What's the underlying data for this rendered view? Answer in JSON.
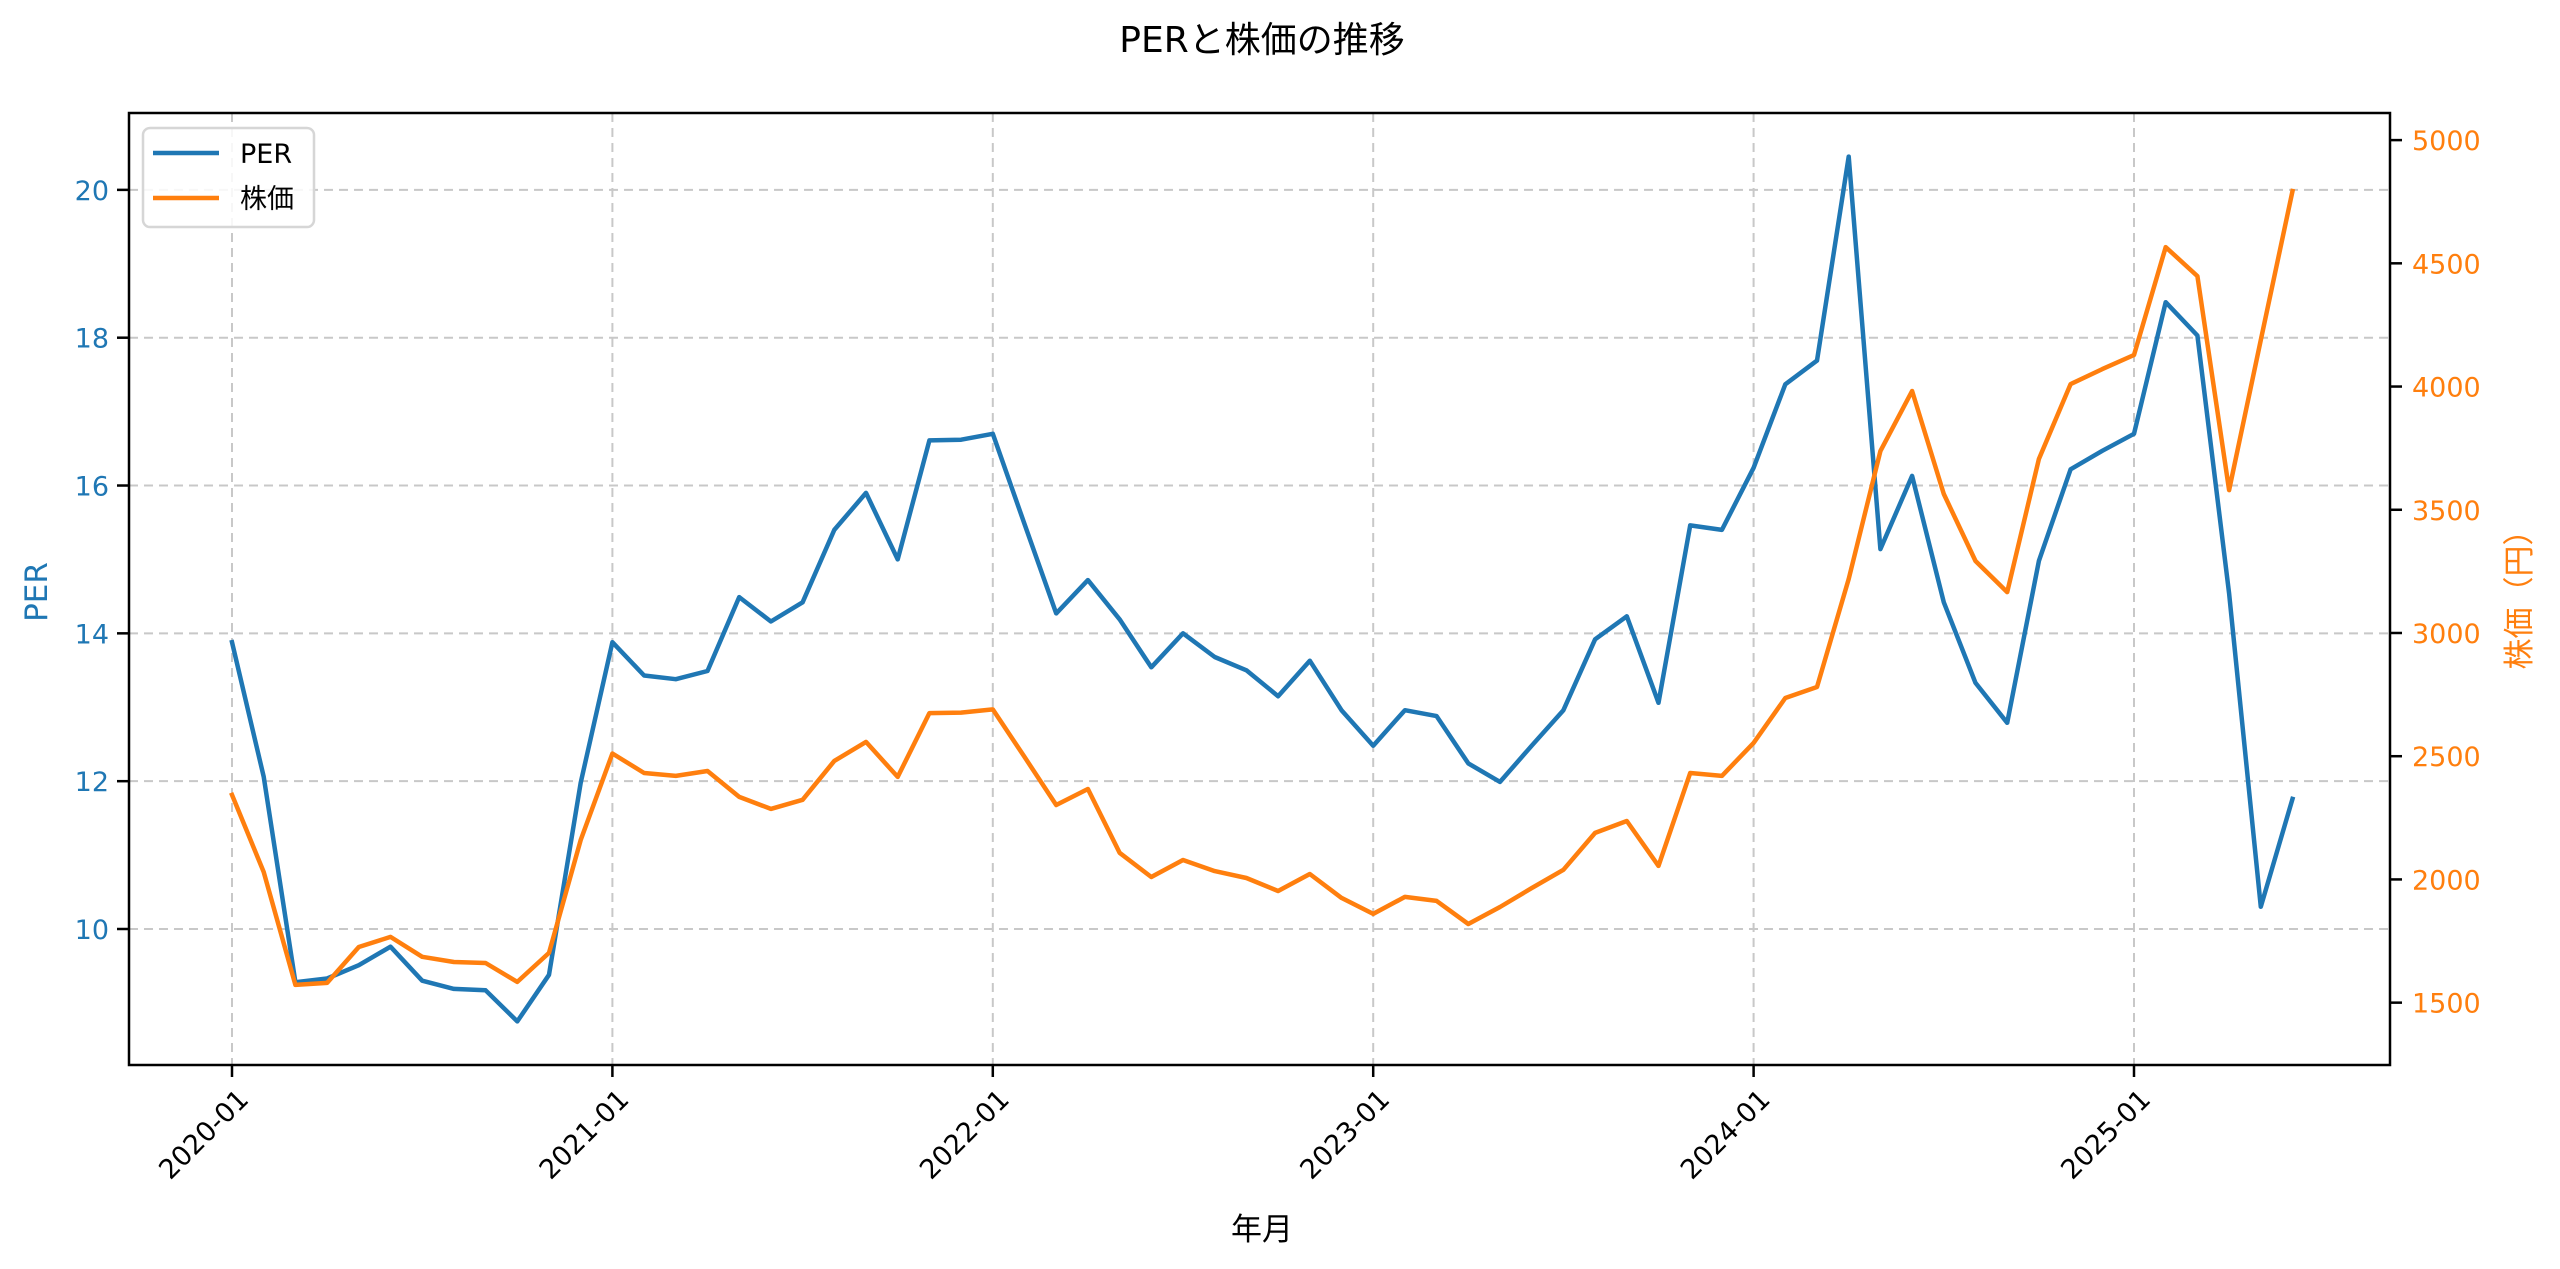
{
  "chart_data": {
    "type": "line",
    "title": "PERと株価の推移",
    "xlabel": "年月",
    "ylabel_left": "PER",
    "ylabel_right": "株価（円）",
    "x_tick_labels": [
      "2020-01",
      "2021-01",
      "2022-01",
      "2023-01",
      "2024-01",
      "2025-01"
    ],
    "y_left_ticks": [
      10,
      12,
      14,
      16,
      18,
      20
    ],
    "y_right_ticks": [
      1500,
      2000,
      2500,
      3000,
      3500,
      4000,
      4500,
      5000
    ],
    "ylim_left": [
      8.16,
      21.04
    ],
    "ylim_right": [
      1247,
      5110
    ],
    "grid": true,
    "legend_position": "upper left",
    "colors": {
      "PER": "#1f77b4",
      "株価": "#ff7f0e"
    },
    "x": [
      "2020-01",
      "2020-02",
      "2020-03",
      "2020-04",
      "2020-05",
      "2020-06",
      "2020-07",
      "2020-08",
      "2020-09",
      "2020-10",
      "2020-11",
      "2020-12",
      "2021-01",
      "2021-02",
      "2021-03",
      "2021-04",
      "2021-05",
      "2021-06",
      "2021-07",
      "2021-08",
      "2021-09",
      "2021-10",
      "2021-11",
      "2021-12",
      "2022-01",
      "2022-02",
      "2022-03",
      "2022-04",
      "2022-05",
      "2022-06",
      "2022-07",
      "2022-08",
      "2022-09",
      "2022-10",
      "2022-11",
      "2022-12",
      "2023-01",
      "2023-02",
      "2023-03",
      "2023-04",
      "2023-05",
      "2023-06",
      "2023-07",
      "2023-08",
      "2023-09",
      "2023-10",
      "2023-11",
      "2023-12",
      "2024-01",
      "2024-02",
      "2024-03",
      "2024-04",
      "2024-05",
      "2024-06",
      "2024-07",
      "2024-08",
      "2024-09",
      "2024-10",
      "2024-11",
      "2024-12",
      "2025-01",
      "2025-02",
      "2025-03",
      "2025-04",
      "2025-05",
      "2025-06"
    ],
    "series": [
      {
        "name": "PER",
        "axis": "left",
        "values": [
          13.88,
          12.06,
          9.28,
          9.33,
          9.51,
          9.76,
          9.3,
          9.19,
          9.17,
          8.75,
          9.38,
          11.98,
          13.88,
          13.43,
          13.38,
          13.49,
          14.49,
          14.16,
          14.42,
          15.4,
          15.9,
          15.0,
          16.61,
          16.62,
          16.7,
          15.48,
          14.27,
          14.72,
          14.19,
          13.54,
          14.0,
          13.68,
          13.5,
          13.15,
          13.63,
          12.96,
          12.48,
          12.96,
          12.88,
          12.24,
          11.99,
          12.48,
          12.96,
          13.92,
          14.23,
          13.06,
          15.46,
          15.4,
          16.24,
          17.37,
          17.69,
          20.45,
          15.14,
          16.13,
          14.42,
          13.33,
          12.79,
          14.98,
          16.22,
          16.47,
          16.7,
          18.48,
          18.03,
          14.54,
          10.3,
          11.76
        ]
      },
      {
        "name": "株価",
        "axis": "right",
        "values": [
          2343,
          2030,
          1572,
          1580,
          1726,
          1767,
          1686,
          1665,
          1661,
          1584,
          1702,
          2160,
          2511,
          2432,
          2420,
          2440,
          2335,
          2286,
          2323,
          2481,
          2558,
          2416,
          2675,
          2677,
          2690,
          2497,
          2302,
          2367,
          2108,
          2010,
          2079,
          2034,
          2006,
          1953,
          2022,
          1925,
          1860,
          1929,
          1913,
          1819,
          1888,
          1965,
          2039,
          2189,
          2237,
          2055,
          2432,
          2420,
          2554,
          2736,
          2781,
          3219,
          3738,
          3982,
          3564,
          3292,
          3166,
          3706,
          4010,
          4071,
          4128,
          4566,
          4448,
          3580,
          4189,
          4793
        ]
      }
    ]
  }
}
